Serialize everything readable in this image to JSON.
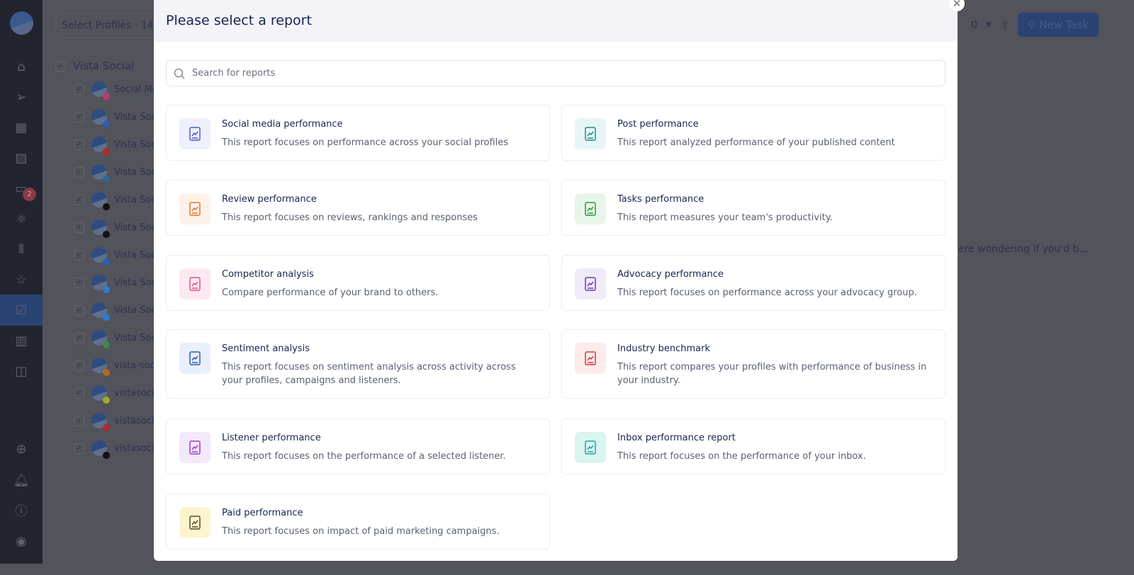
{
  "rail": {
    "items": [
      "home-icon",
      "send-icon",
      "calendar-icon",
      "image-icon",
      "inbox-icon",
      "atom-icon",
      "listening-icon",
      "star-icon",
      "tasks-icon",
      "reports-icon",
      "layout-icon",
      "plus-icon",
      "bell-icon",
      "help-icon",
      "user-icon"
    ],
    "inbox_badge": "2",
    "active": "tasks-icon"
  },
  "background": {
    "select_profiles": "Select Profiles · 14",
    "group": "Vista Social",
    "profiles": [
      {
        "name": "Social Me",
        "network": "instagram",
        "color": "#c23a6b"
      },
      {
        "name": "Vista Soc",
        "network": "facebook",
        "color": "#2d5fb8"
      },
      {
        "name": "Vista Soc",
        "network": "youtube",
        "color": "#b22a2a"
      },
      {
        "name": "Vista Soc",
        "network": "linkedin",
        "color": "#2a6a8f"
      },
      {
        "name": "Vista Soc",
        "network": "x",
        "color": "#111"
      },
      {
        "name": "Vista Soc",
        "network": "tiktok",
        "color": "#111"
      },
      {
        "name": "Vista Soc",
        "network": "google-business",
        "color": "#2d5fb8"
      },
      {
        "name": "Vista Soc",
        "network": "bluesky",
        "color": "#2d7bd8"
      },
      {
        "name": "Vista Soc",
        "network": "app-store",
        "color": "#2d7bd8"
      },
      {
        "name": "Vista Soc",
        "network": "google-play",
        "color": "#3a8a4a"
      },
      {
        "name": "vista-soc",
        "network": "analytics",
        "color": "#b86a1a"
      },
      {
        "name": "vistasoci",
        "network": "snapchat",
        "color": "#a8a820"
      },
      {
        "name": "vistasoci",
        "network": "pinterest",
        "color": "#b22a2a"
      },
      {
        "name": "vistasoci",
        "network": "threads",
        "color": "#111"
      }
    ],
    "count_suffix": "0",
    "new_task": "New Task",
    "snippet": "ere wondering if you'd b..."
  },
  "modal": {
    "title": "Please select a report",
    "search_placeholder": "Search for reports",
    "reports": [
      {
        "title": "Social media performance",
        "desc": "This report focuses on performance across your social profiles",
        "icon": "phone-chart-icon",
        "bg": "#eef0fc",
        "fg": "#4a5bd4"
      },
      {
        "title": "Post performance",
        "desc": "This report analyzed performance of your published content",
        "icon": "document-icon",
        "bg": "#e6f6f6",
        "fg": "#1f8f8a"
      },
      {
        "title": "Review performance",
        "desc": "This report focuses on reviews, rankings and responses",
        "icon": "chat-star-icon",
        "bg": "#fdf2ea",
        "fg": "#e8752a"
      },
      {
        "title": "Tasks performance",
        "desc": "This report measures your team's productivity.",
        "icon": "team-icon",
        "bg": "#e8f6ea",
        "fg": "#2a9a3a"
      },
      {
        "title": "Competitor analysis",
        "desc": "Compare performance of your brand to others.",
        "icon": "phone-compare-icon",
        "bg": "#fde9f2",
        "fg": "#e0518e"
      },
      {
        "title": "Advocacy performance",
        "desc": "This report focuses on performance across your advocacy group.",
        "icon": "megaphone-icon",
        "bg": "#f0eaf9",
        "fg": "#6a3ab8"
      },
      {
        "title": "Sentiment analysis",
        "desc": "This report focuses on sentiment analysis across activity across your profiles, campaigns and listeners.",
        "icon": "sentiment-icon",
        "bg": "#e9f0fb",
        "fg": "#2a5ab8"
      },
      {
        "title": "Industry benchmark",
        "desc": "This report compares your profiles with performance of business in your industry.",
        "icon": "benchmark-icon",
        "bg": "#fdeaea",
        "fg": "#d83a3a"
      },
      {
        "title": "Listener performance",
        "desc": "This report focuses on the performance of a selected listener.",
        "icon": "listener-icon",
        "bg": "#f4e8fb",
        "fg": "#9a3ad0"
      },
      {
        "title": "Inbox performance report",
        "desc": "This report focuses on the performance of your inbox.",
        "icon": "inbox-icon",
        "bg": "#d9f4f1",
        "fg": "#1aa89a"
      },
      {
        "title": "Paid performance",
        "desc": "This report focuses on impact of paid marketing campaigns.",
        "icon": "paid-chart-icon",
        "bg": "#fbf4cf",
        "fg": "#5a4a2a"
      }
    ]
  }
}
